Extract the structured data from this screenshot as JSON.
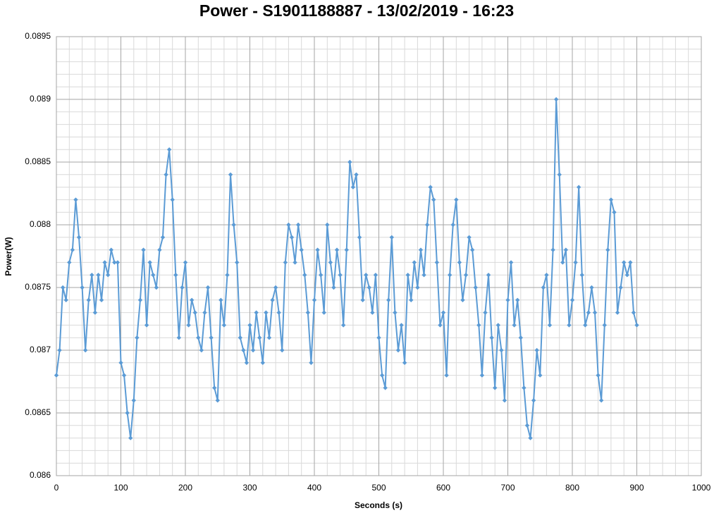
{
  "chart_data": {
    "type": "line",
    "title": "Power - S1901188887 - 13/02/2019 - 16:23",
    "x_label": "Seconds (s)",
    "y_label": "Power(W)",
    "xlim": [
      0,
      1000
    ],
    "xticks": [
      0,
      100,
      200,
      300,
      400,
      500,
      600,
      700,
      800,
      900,
      1000
    ],
    "ylim": [
      0.086,
      0.0895
    ],
    "yticks": [
      0.086,
      0.0865,
      0.087,
      0.0875,
      0.088,
      0.0885,
      0.089,
      0.0895
    ],
    "grid": true,
    "minor_grid": {
      "x": 20,
      "y": 0.0001
    },
    "markers": "diamond",
    "series": [
      {
        "color": "#5b9bd5",
        "x": [
          0,
          5,
          10,
          15,
          20,
          25,
          30,
          35,
          40,
          45,
          50,
          55,
          60,
          65,
          70,
          75,
          80,
          85,
          90,
          95,
          100,
          105,
          110,
          115,
          120,
          125,
          130,
          135,
          140,
          145,
          150,
          155,
          160,
          165,
          170,
          175,
          180,
          185,
          190,
          195,
          200,
          205,
          210,
          215,
          220,
          225,
          230,
          235,
          240,
          245,
          250,
          255,
          260,
          265,
          270,
          275,
          280,
          285,
          290,
          295,
          300,
          305,
          310,
          315,
          320,
          325,
          330,
          335,
          340,
          345,
          350,
          355,
          360,
          365,
          370,
          375,
          380,
          385,
          390,
          395,
          400,
          405,
          410,
          415,
          420,
          425,
          430,
          435,
          440,
          445,
          450,
          455,
          460,
          465,
          470,
          475,
          480,
          485,
          490,
          495,
          500,
          505,
          510,
          515,
          520,
          525,
          530,
          535,
          540,
          545,
          550,
          555,
          560,
          565,
          570,
          575,
          580,
          585,
          590,
          595,
          600,
          605,
          610,
          615,
          620,
          625,
          630,
          635,
          640,
          645,
          650,
          655,
          660,
          665,
          670,
          675,
          680,
          685,
          690,
          695,
          700,
          705,
          710,
          715,
          720,
          725,
          730,
          735,
          740,
          745,
          750,
          755,
          760,
          765,
          770,
          775,
          780,
          785,
          790,
          795,
          800,
          805,
          810,
          815,
          820,
          825,
          830,
          835,
          840,
          845,
          850,
          855,
          860,
          865,
          870,
          875,
          880,
          885,
          890,
          895,
          900
        ],
        "values": [
          0.0868,
          0.087,
          0.0875,
          0.0874,
          0.0877,
          0.0878,
          0.0882,
          0.0879,
          0.0875,
          0.087,
          0.0874,
          0.0876,
          0.0873,
          0.0876,
          0.0874,
          0.0877,
          0.0876,
          0.0878,
          0.0877,
          0.0877,
          0.0869,
          0.0868,
          0.0865,
          0.0863,
          0.0866,
          0.0871,
          0.0874,
          0.0878,
          0.0872,
          0.0877,
          0.0876,
          0.0875,
          0.0878,
          0.0879,
          0.0884,
          0.0886,
          0.0882,
          0.0876,
          0.0871,
          0.0875,
          0.0877,
          0.0872,
          0.0874,
          0.0873,
          0.0871,
          0.087,
          0.0873,
          0.0875,
          0.0871,
          0.0867,
          0.0866,
          0.0874,
          0.0872,
          0.0876,
          0.0884,
          0.088,
          0.0877,
          0.0871,
          0.087,
          0.0869,
          0.0872,
          0.087,
          0.0873,
          0.0871,
          0.0869,
          0.0873,
          0.0871,
          0.0874,
          0.0875,
          0.0873,
          0.087,
          0.0877,
          0.088,
          0.0879,
          0.0877,
          0.088,
          0.0878,
          0.0876,
          0.0873,
          0.0869,
          0.0874,
          0.0878,
          0.0876,
          0.0873,
          0.088,
          0.0877,
          0.0875,
          0.0878,
          0.0876,
          0.0872,
          0.0878,
          0.0885,
          0.0883,
          0.0884,
          0.0879,
          0.0874,
          0.0876,
          0.0875,
          0.0873,
          0.0876,
          0.0871,
          0.0868,
          0.0867,
          0.0874,
          0.0879,
          0.0873,
          0.087,
          0.0872,
          0.0869,
          0.0876,
          0.0874,
          0.0877,
          0.0875,
          0.0878,
          0.0876,
          0.088,
          0.0883,
          0.0882,
          0.0877,
          0.0872,
          0.0873,
          0.0868,
          0.0876,
          0.088,
          0.0882,
          0.0877,
          0.0874,
          0.0876,
          0.0879,
          0.0878,
          0.0875,
          0.0872,
          0.0868,
          0.0873,
          0.0876,
          0.0871,
          0.0867,
          0.0872,
          0.087,
          0.0866,
          0.0874,
          0.0877,
          0.0872,
          0.0874,
          0.0871,
          0.0867,
          0.0864,
          0.0863,
          0.0866,
          0.087,
          0.0868,
          0.0875,
          0.0876,
          0.0872,
          0.0878,
          0.089,
          0.0884,
          0.0877,
          0.0878,
          0.0872,
          0.0874,
          0.0877,
          0.0883,
          0.0876,
          0.0872,
          0.0873,
          0.0875,
          0.0873,
          0.0868,
          0.0866,
          0.0872,
          0.0878,
          0.0882,
          0.0881,
          0.0873,
          0.0875,
          0.0877,
          0.0876,
          0.0877,
          0.0873,
          0.0872
        ]
      }
    ]
  }
}
